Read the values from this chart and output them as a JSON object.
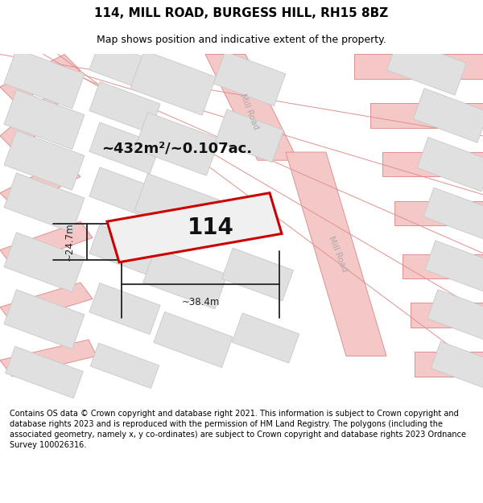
{
  "title": "114, MILL ROAD, BURGESS HILL, RH15 8BZ",
  "subtitle": "Map shows position and indicative extent of the property.",
  "footer": "Contains OS data © Crown copyright and database right 2021. This information is subject to Crown copyright and database rights 2023 and is reproduced with the permission of HM Land Registry. The polygons (including the associated geometry, namely x, y co-ordinates) are subject to Crown copyright and database rights 2023 Ordnance Survey 100026316.",
  "map_bg": "#f0f0f0",
  "road_fill": "#f5c8c8",
  "road_edge": "#e09090",
  "block_fill": "#e0e0e0",
  "block_edge": "#c8c8c8",
  "highlight_color": "#cc0000",
  "area_text": "~432m²/~0.107ac.",
  "number_text": "114",
  "width_text": "~38.4m",
  "height_text": "~24.7m",
  "road_label": "Mill Road",
  "title_fontsize": 11,
  "subtitle_fontsize": 9,
  "footer_fontsize": 7,
  "white_bg": "#ffffff",
  "dim_color": "#222222",
  "road_label_color": "#aaaaaa",
  "title_color": "#000000",
  "footer_color": "#000000"
}
